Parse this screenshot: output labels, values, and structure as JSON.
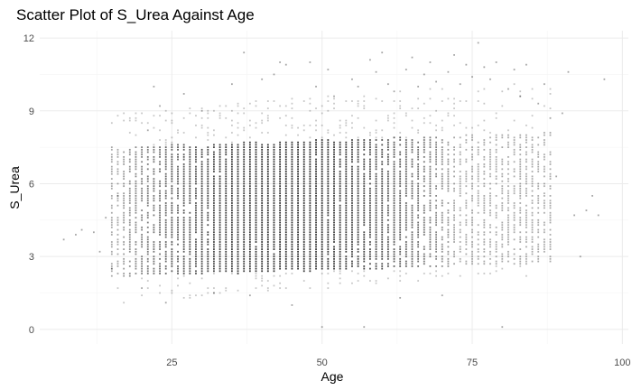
{
  "chart_data": {
    "type": "scatter",
    "title": "Scatter Plot of S_Urea Against Age",
    "xlabel": "Age",
    "ylabel": "S_Urea",
    "xlim": [
      3,
      101
    ],
    "ylim": [
      -0.6,
      12.3
    ],
    "x_ticks": [
      25,
      50,
      75,
      100
    ],
    "y_ticks": [
      0,
      3,
      6,
      9,
      12
    ],
    "x_tick_labels": [
      "25",
      "50",
      "75",
      "100"
    ],
    "y_tick_labels": [
      "0",
      "3",
      "6",
      "9",
      "12"
    ],
    "grid": true,
    "point_color": "#000000",
    "point_alpha": 0.25,
    "x_step": 1,
    "age_range": [
      7,
      97
    ],
    "dense_band": {
      "age_range": [
        15,
        88
      ],
      "s_urea_core": [
        2.2,
        7.5
      ],
      "s_urea_extent": [
        1.1,
        9.0
      ]
    },
    "points": [
      {
        "x": 7,
        "y": 3.7
      },
      {
        "x": 9,
        "y": 3.9
      },
      {
        "x": 10,
        "y": 4.1
      },
      {
        "x": 12,
        "y": 4.0
      },
      {
        "x": 13,
        "y": 3.2
      },
      {
        "x": 14,
        "y": 4.6
      },
      {
        "x": 15,
        "y": 2.5
      },
      {
        "x": 16,
        "y": 5.5
      },
      {
        "x": 20,
        "y": 1.7
      },
      {
        "x": 21,
        "y": 8.2
      },
      {
        "x": 22,
        "y": 10.0
      },
      {
        "x": 23,
        "y": 9.2
      },
      {
        "x": 24,
        "y": 1.1
      },
      {
        "x": 27,
        "y": 9.7
      },
      {
        "x": 30,
        "y": 9.0
      },
      {
        "x": 32,
        "y": 1.5
      },
      {
        "x": 35,
        "y": 10.1
      },
      {
        "x": 37,
        "y": 11.4
      },
      {
        "x": 38,
        "y": 1.4
      },
      {
        "x": 40,
        "y": 10.3
      },
      {
        "x": 42,
        "y": 10.5
      },
      {
        "x": 43,
        "y": 11.0
      },
      {
        "x": 44,
        "y": 10.9
      },
      {
        "x": 45,
        "y": 1.0
      },
      {
        "x": 48,
        "y": 11.0
      },
      {
        "x": 49,
        "y": 10.0
      },
      {
        "x": 50,
        "y": 0.1
      },
      {
        "x": 51,
        "y": 10.7
      },
      {
        "x": 52,
        "y": 9.6
      },
      {
        "x": 55,
        "y": 10.3
      },
      {
        "x": 56,
        "y": 10.0
      },
      {
        "x": 57,
        "y": 0.1
      },
      {
        "x": 58,
        "y": 11.1
      },
      {
        "x": 59,
        "y": 10.6
      },
      {
        "x": 60,
        "y": 11.4
      },
      {
        "x": 61,
        "y": 10.1
      },
      {
        "x": 62,
        "y": 9.8
      },
      {
        "x": 63,
        "y": 1.3
      },
      {
        "x": 64,
        "y": 10.7
      },
      {
        "x": 65,
        "y": 11.2
      },
      {
        "x": 66,
        "y": 10.0
      },
      {
        "x": 67,
        "y": 10.5
      },
      {
        "x": 68,
        "y": 11.0
      },
      {
        "x": 69,
        "y": 10.2
      },
      {
        "x": 70,
        "y": 1.4
      },
      {
        "x": 71,
        "y": 10.6
      },
      {
        "x": 72,
        "y": 11.3
      },
      {
        "x": 73,
        "y": 10.1
      },
      {
        "x": 74,
        "y": 10.9
      },
      {
        "x": 75,
        "y": 10.4
      },
      {
        "x": 76,
        "y": 11.8
      },
      {
        "x": 77,
        "y": 10.8
      },
      {
        "x": 78,
        "y": 10.3
      },
      {
        "x": 79,
        "y": 11.0
      },
      {
        "x": 80,
        "y": 0.1
      },
      {
        "x": 81,
        "y": 9.9
      },
      {
        "x": 82,
        "y": 10.7
      },
      {
        "x": 83,
        "y": 9.6
      },
      {
        "x": 84,
        "y": 10.9
      },
      {
        "x": 85,
        "y": 3.1
      },
      {
        "x": 86,
        "y": 9.3
      },
      {
        "x": 87,
        "y": 10.1
      },
      {
        "x": 88,
        "y": 8.7
      },
      {
        "x": 89,
        "y": 6.3
      },
      {
        "x": 90,
        "y": 8.9
      },
      {
        "x": 91,
        "y": 10.6
      },
      {
        "x": 92,
        "y": 4.7
      },
      {
        "x": 93,
        "y": 3.0
      },
      {
        "x": 94,
        "y": 4.9
      },
      {
        "x": 95,
        "y": 5.5
      },
      {
        "x": 96,
        "y": 4.7
      },
      {
        "x": 97,
        "y": 10.3
      }
    ]
  }
}
